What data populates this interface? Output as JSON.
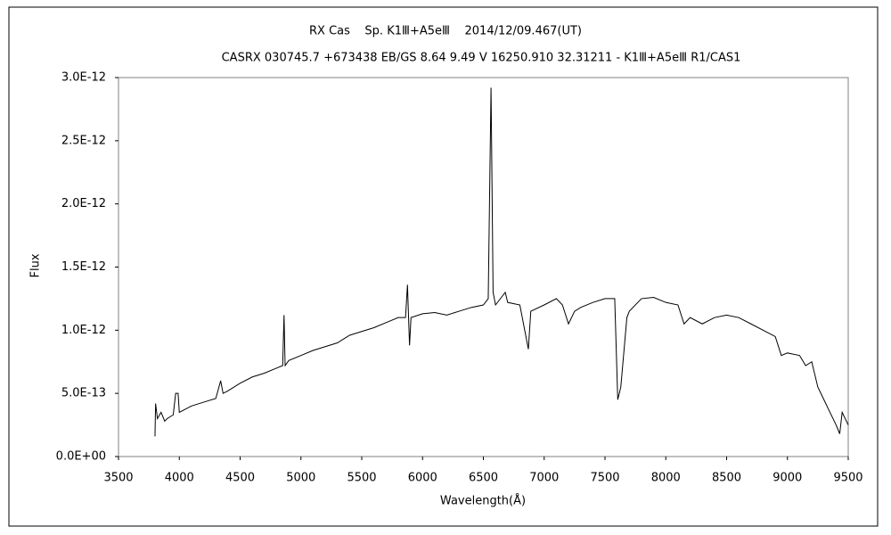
{
  "chart_data": {
    "type": "line",
    "title": "RX Cas    Sp. K1Ⅲ+A5eⅢ    2014/12/09.467(UT)",
    "subtitle": "CASRX 030745.7 +673438 EB/GS 8.64 9.49 V 16250.910 32.31211 - K1Ⅲ+A5eⅢ R1/CAS1",
    "xlabel": "Wavelength(Å)",
    "ylabel": "Flux",
    "color": "#000000",
    "grid": false,
    "xlim": [
      3500,
      9500
    ],
    "xticks": [
      3500,
      4000,
      4500,
      5000,
      5500,
      6000,
      6500,
      7000,
      7500,
      8000,
      8500,
      9000,
      9500
    ],
    "ylim": [
      0,
      3e-12
    ],
    "yticks": [
      {
        "value": 0,
        "label": "0.0E+00"
      },
      {
        "value": 5e-13,
        "label": "5.0E-13"
      },
      {
        "value": 1e-12,
        "label": "1.0E-12"
      },
      {
        "value": 1.5e-12,
        "label": "1.5E-12"
      },
      {
        "value": 2e-12,
        "label": "2.0E-12"
      },
      {
        "value": 2.5e-12,
        "label": "2.5E-12"
      },
      {
        "value": 3e-12,
        "label": "3.0E-12"
      }
    ],
    "x": [
      3800,
      3805,
      3820,
      3850,
      3880,
      3900,
      3950,
      3970,
      3990,
      4000,
      4100,
      4200,
      4300,
      4340,
      4360,
      4400,
      4500,
      4600,
      4700,
      4800,
      4850,
      4861,
      4870,
      4900,
      5000,
      5100,
      5200,
      5300,
      5400,
      5500,
      5600,
      5700,
      5800,
      5860,
      5876,
      5885,
      5893,
      5905,
      6000,
      6100,
      6200,
      6300,
      6400,
      6500,
      6540,
      6563,
      6580,
      6600,
      6680,
      6700,
      6800,
      6870,
      6890,
      7000,
      7100,
      7150,
      7200,
      7250,
      7300,
      7400,
      7500,
      7580,
      7605,
      7630,
      7680,
      7700,
      7800,
      7900,
      8000,
      8100,
      8150,
      8200,
      8300,
      8400,
      8500,
      8600,
      8700,
      8800,
      8900,
      8950,
      9000,
      9100,
      9150,
      9200,
      9250,
      9300,
      9350,
      9400,
      9430,
      9450,
      9500
    ],
    "values": [
      1.6e-13,
      4.2e-13,
      3e-13,
      3.5e-13,
      2.8e-13,
      3e-13,
      3.3e-13,
      5e-13,
      5e-13,
      3.5e-13,
      4e-13,
      4.3e-13,
      4.6e-13,
      6e-13,
      5e-13,
      5.2e-13,
      5.8e-13,
      6.3e-13,
      6.6e-13,
      7e-13,
      7.2e-13,
      1.12e-12,
      7.2e-13,
      7.6e-13,
      8e-13,
      8.4e-13,
      8.7e-13,
      9e-13,
      9.6e-13,
      9.9e-13,
      1.02e-12,
      1.06e-12,
      1.1e-12,
      1.1e-12,
      1.36e-12,
      1.1e-12,
      8.8e-13,
      1.1e-12,
      1.13e-12,
      1.14e-12,
      1.12e-12,
      1.15e-12,
      1.18e-12,
      1.2e-12,
      1.25e-12,
      2.92e-12,
      1.3e-12,
      1.2e-12,
      1.3e-12,
      1.22e-12,
      1.2e-12,
      8.5e-13,
      1.15e-12,
      1.2e-12,
      1.25e-12,
      1.2e-12,
      1.05e-12,
      1.15e-12,
      1.18e-12,
      1.22e-12,
      1.25e-12,
      1.25e-12,
      4.5e-13,
      5.5e-13,
      1.1e-12,
      1.15e-12,
      1.25e-12,
      1.26e-12,
      1.22e-12,
      1.2e-12,
      1.05e-12,
      1.1e-12,
      1.05e-12,
      1.1e-12,
      1.12e-12,
      1.1e-12,
      1.05e-12,
      1e-12,
      9.5e-13,
      8e-13,
      8.2e-13,
      8e-13,
      7.2e-13,
      7.5e-13,
      5.5e-13,
      4.5e-13,
      3.5e-13,
      2.5e-13,
      1.8e-13,
      3.5e-13,
      2.5e-13
    ]
  }
}
